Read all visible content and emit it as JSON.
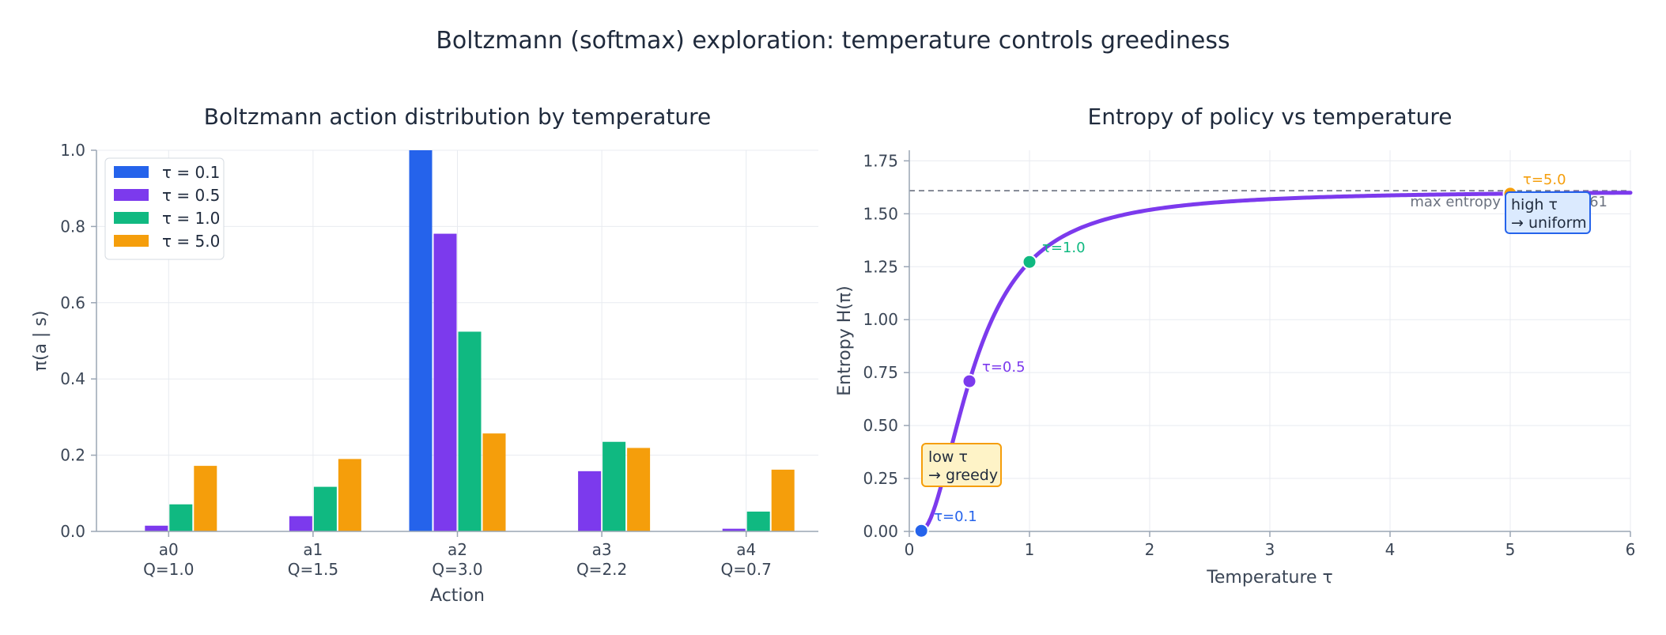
{
  "suptitle": "Boltzmann (softmax) exploration: temperature controls greediness",
  "chart_data": [
    {
      "type": "bar",
      "title": "Boltzmann action distribution by temperature",
      "xlabel": "Action",
      "ylabel": "π(a | s)",
      "ylim": [
        0,
        1.0
      ],
      "yticks": [
        "0.0",
        "0.2",
        "0.4",
        "0.6",
        "0.8",
        "1.0"
      ],
      "grid": true,
      "legend_position": "top-left",
      "categories": [
        "a0",
        "a1",
        "a2",
        "a3",
        "a4"
      ],
      "category_sublabels": [
        "Q=1.0",
        "Q=1.5",
        "Q=3.0",
        "Q=2.2",
        "Q=0.7"
      ],
      "series": [
        {
          "name": "τ = 0.1",
          "color": "#2563eb",
          "values": [
            0.0,
            0.0,
            1.0,
            0.0,
            0.0
          ]
        },
        {
          "name": "τ = 0.5",
          "color": "#7c3aed",
          "values": [
            0.015,
            0.04,
            0.781,
            0.158,
            0.007
          ]
        },
        {
          "name": "τ = 1.0",
          "color": "#10b981",
          "values": [
            0.071,
            0.117,
            0.524,
            0.235,
            0.052
          ]
        },
        {
          "name": "τ = 5.0",
          "color": "#f59e0b",
          "values": [
            0.172,
            0.19,
            0.257,
            0.219,
            0.162
          ]
        }
      ]
    },
    {
      "type": "line",
      "title": "Entropy of policy vs temperature",
      "xlabel": "Temperature τ",
      "ylabel": "Entropy H(π)",
      "xlim": [
        0,
        6
      ],
      "ylim": [
        0,
        1.8
      ],
      "xticks": [
        "0",
        "1",
        "2",
        "3",
        "4",
        "5",
        "6"
      ],
      "yticks": [
        "0.00",
        "0.25",
        "0.50",
        "0.75",
        "1.00",
        "1.25",
        "1.50",
        "1.75"
      ],
      "grid": true,
      "q_values": [
        1.0,
        1.5,
        3.0,
        2.2,
        0.7
      ],
      "curve_color": "#7c3aed",
      "max_entropy": {
        "value": 1.609,
        "label": "max entropy = ln(5) ≈ 1.61",
        "color": "#6b7280"
      },
      "points": [
        {
          "tau": 0.1,
          "label": "τ=0.1",
          "color": "#2563eb"
        },
        {
          "tau": 0.5,
          "label": "τ=0.5",
          "color": "#7c3aed"
        },
        {
          "tau": 1.0,
          "label": "τ=1.0",
          "color": "#10b981"
        },
        {
          "tau": 5.0,
          "label": "τ=5.0",
          "color": "#f59e0b"
        }
      ],
      "annotations": [
        {
          "lines": [
            "low τ",
            "→ greedy"
          ],
          "fill": "#fef3c7",
          "stroke": "#f59e0b"
        },
        {
          "lines": [
            "high τ",
            "→ uniform"
          ],
          "fill": "#dbeafe",
          "stroke": "#2563eb"
        }
      ]
    }
  ]
}
